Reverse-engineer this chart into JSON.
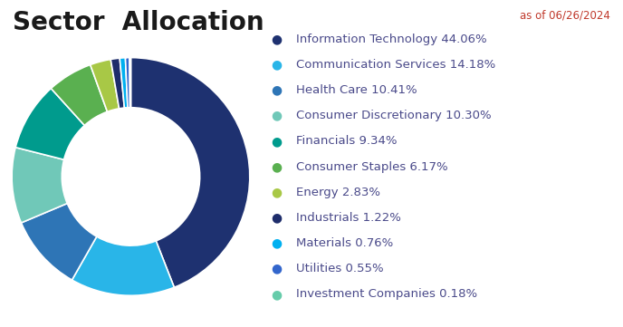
{
  "title": "Sector  Allocation",
  "date_label": "as of 06/26/2024",
  "sectors": [
    {
      "name": "Information Technology",
      "value": 44.06,
      "color": "#1e3170"
    },
    {
      "name": "Communication Services",
      "value": 14.18,
      "color": "#29b5e8"
    },
    {
      "name": "Health Care",
      "value": 10.41,
      "color": "#2e75b6"
    },
    {
      "name": "Consumer Discretionary",
      "value": 10.3,
      "color": "#70c8b8"
    },
    {
      "name": "Financials",
      "value": 9.34,
      "color": "#009b8d"
    },
    {
      "name": "Consumer Staples",
      "value": 6.17,
      "color": "#5ab050"
    },
    {
      "name": "Energy",
      "value": 2.83,
      "color": "#a8c846"
    },
    {
      "name": "Industrials",
      "value": 1.22,
      "color": "#1e2d6b"
    },
    {
      "name": "Materials",
      "value": 0.76,
      "color": "#00b0f0"
    },
    {
      "name": "Utilities",
      "value": 0.55,
      "color": "#3366cc"
    },
    {
      "name": "Investment Companies",
      "value": 0.18,
      "color": "#66ccaa"
    }
  ],
  "background_color": "#ffffff",
  "title_fontsize": 20,
  "legend_fontsize": 9.5,
  "date_color": "#c0392b",
  "text_color": "#4a4a8a",
  "donut_width": 0.42
}
